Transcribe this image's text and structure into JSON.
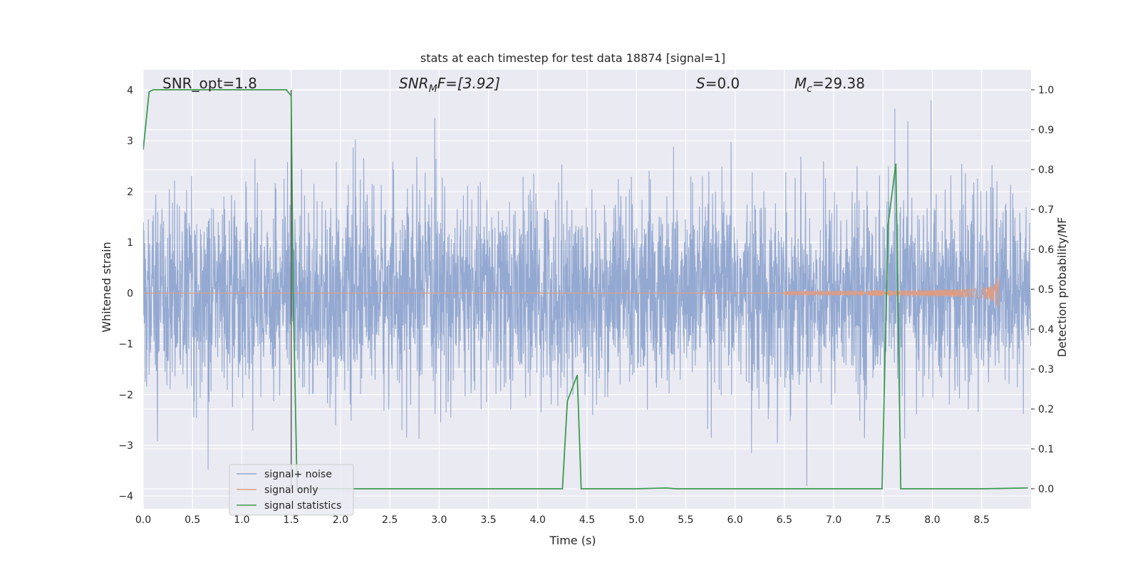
{
  "chart_data": {
    "type": "line",
    "title": "stats at each timestep for test data 18874 [signal=1]",
    "xlabel": "Time (s)",
    "ylabel_left": "Whitened strain",
    "ylabel_right": "Detection probability/MF",
    "xlim": [
      0.0,
      9.0
    ],
    "ylim_left": [
      -4.25,
      4.4
    ],
    "ylim_right": [
      -0.05,
      1.05
    ],
    "x_ticks": [
      "0.0",
      "0.5",
      "1.0",
      "1.5",
      "2.0",
      "2.5",
      "3.0",
      "3.5",
      "4.0",
      "4.5",
      "5.0",
      "5.5",
      "6.0",
      "6.5",
      "7.0",
      "7.5",
      "8.0",
      "8.5"
    ],
    "y_ticks_left": [
      "−4",
      "−3",
      "−2",
      "−1",
      "0",
      "1",
      "2",
      "3",
      "4"
    ],
    "y_ticks_right": [
      "0.0",
      "0.1",
      "0.2",
      "0.3",
      "0.4",
      "0.5",
      "0.6",
      "0.7",
      "0.8",
      "0.9",
      "1.0"
    ],
    "grid": true,
    "legend_placement": "lower-left",
    "annotations": {
      "snr_opt": "SNR_opt=1.8",
      "snr_mf_var": "SNR",
      "snr_mf_sub": "M",
      "snr_mf_rest": "F=[3.92]",
      "s_var": "S",
      "s_rest": "=0.0",
      "mc_var": "M",
      "mc_sub": "c",
      "mc_rest": "=29.38"
    },
    "series": [
      {
        "name": "signal+ noise",
        "axis": "left",
        "color": "#8fa5cf",
        "style": "dense noise, amplitude roughly ±2.5 with spikes to ±3.8"
      },
      {
        "name": "signal only",
        "axis": "left",
        "color": "#dd9d84",
        "chirp_end_time": 8.67,
        "peak_amplitude": 0.45
      },
      {
        "name": "signal statistics",
        "axis": "right",
        "color": "#3d9a51",
        "x": [
          0.0,
          0.06,
          0.1,
          0.5,
          1.0,
          1.45,
          1.5,
          1.52,
          1.56,
          1.6,
          2.0,
          3.0,
          4.0,
          4.25,
          4.3,
          4.4,
          4.44,
          5.0,
          5.3,
          5.4,
          6.0,
          7.0,
          7.49,
          7.55,
          7.63,
          7.68,
          7.7,
          8.0,
          8.5,
          8.97
        ],
        "values": [
          0.85,
          0.995,
          1.0,
          1.0,
          1.0,
          1.0,
          0.985,
          0.5,
          0.0,
          0.0,
          0.0,
          0.0,
          0.0,
          0.0,
          0.22,
          0.285,
          0.0,
          0.0,
          0.002,
          0.0,
          0.0,
          0.0,
          0.0,
          0.66,
          0.815,
          0.0,
          0.0,
          0.0,
          0.0,
          0.002
        ]
      }
    ],
    "vertical_marker": {
      "x": 1.5,
      "color": "#555555"
    }
  }
}
